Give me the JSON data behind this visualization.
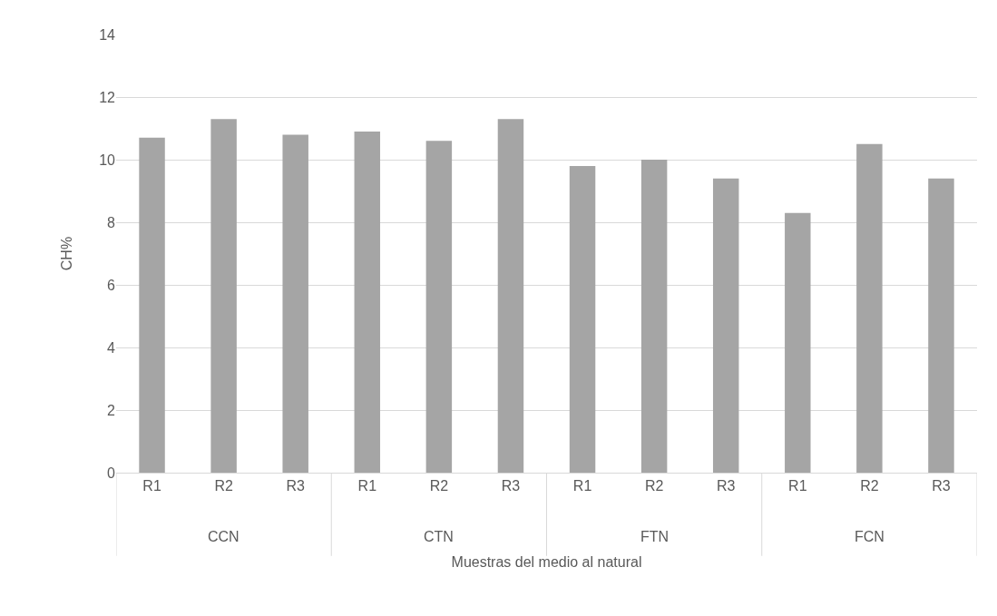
{
  "chart_data": {
    "type": "bar",
    "categories": [
      "R1",
      "R2",
      "R3",
      "R1",
      "R2",
      "R3",
      "R1",
      "R2",
      "R3",
      "R1",
      "R2",
      "R3"
    ],
    "values": [
      10.7,
      11.3,
      10.8,
      10.9,
      10.6,
      11.3,
      9.8,
      10.0,
      9.4,
      8.3,
      10.5,
      9.4
    ],
    "color": "#a5a5a5",
    "xlabel": "Muestras del medio al natural",
    "ylabel": "CH%",
    "annotations": [
      "CCN",
      "CTN",
      "FTN",
      "FCN"
    ],
    "ylim": [
      0,
      14
    ],
    "yticks": [
      0,
      2,
      4,
      6,
      8,
      10,
      12,
      14
    ],
    "grid": "y",
    "legend": false
  }
}
